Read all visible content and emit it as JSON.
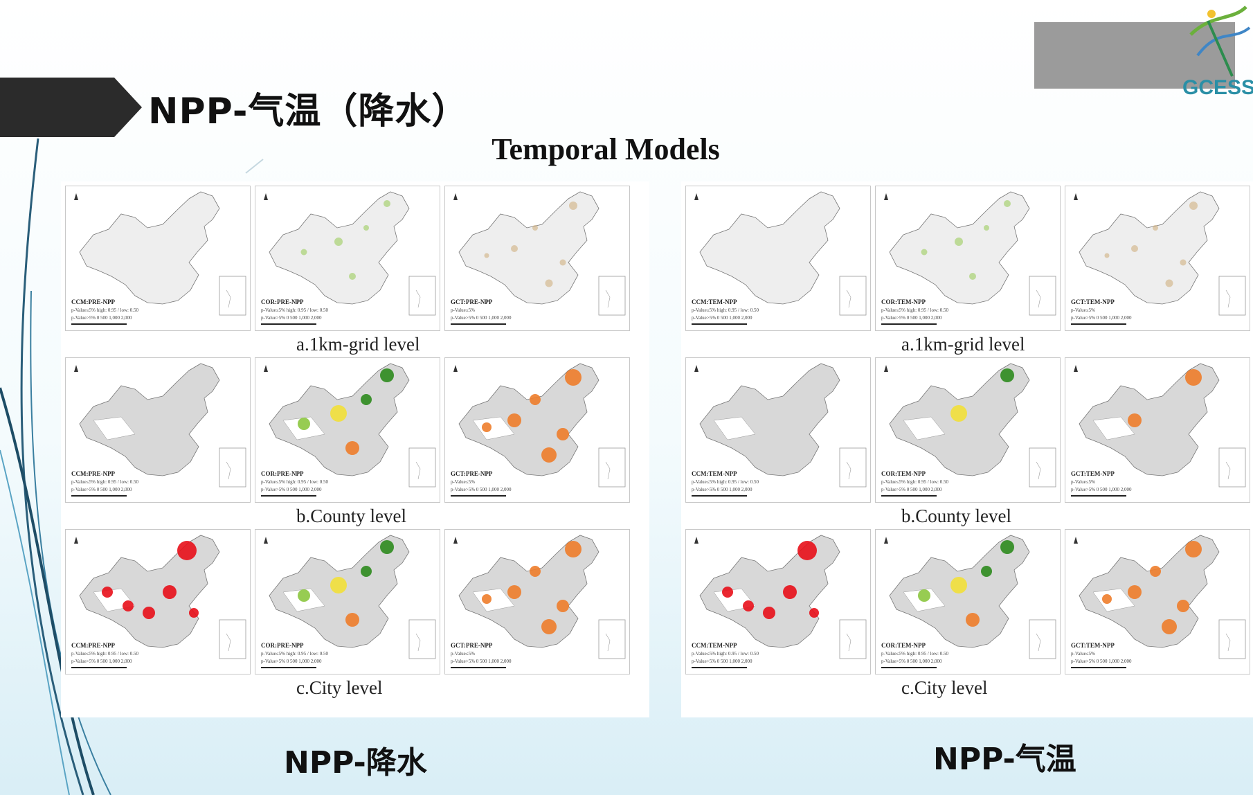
{
  "slide": {
    "title": "NPP-气温（降水）",
    "subtitle": "Temporal Models",
    "logo_text": "GCESS"
  },
  "panels": {
    "left": {
      "caption": "NPP-降水",
      "rows": [
        {
          "label": "a.1km-grid level",
          "maps": [
            {
              "model": "CCM:PRE-NPP",
              "legend": "high: 0.95 / low: 0.50"
            },
            {
              "model": "COR:PRE-NPP",
              "legend": "high: 0.95 / low: 0.50"
            },
            {
              "model": "GCT:PRE-NPP",
              "legend": ""
            }
          ]
        },
        {
          "label": "b.County level",
          "maps": [
            {
              "model": "CCM:PRE-NPP",
              "legend": "high: 0.95 / low: 0.50"
            },
            {
              "model": "COR:PRE-NPP",
              "legend": "high: 0.95 / low: 0.50"
            },
            {
              "model": "GCT:PRE-NPP",
              "legend": ""
            }
          ]
        },
        {
          "label": "c.City level",
          "maps": [
            {
              "model": "CCM:PRE-NPP",
              "legend": "high: 0.95 / low: 0.50"
            },
            {
              "model": "COR:PRE-NPP",
              "legend": "high: 0.95 / low: 0.50"
            },
            {
              "model": "GCT:PRE-NPP",
              "legend": ""
            }
          ]
        }
      ]
    },
    "right": {
      "caption": "NPP-气温",
      "rows": [
        {
          "label": "a.1km-grid level",
          "maps": [
            {
              "model": "CCM:TEM-NPP",
              "legend": "high: 0.95 / low: 0.50"
            },
            {
              "model": "COR:TEM-NPP",
              "legend": "high: 0.95 / low: 0.50"
            },
            {
              "model": "GCT:TEM-NPP",
              "legend": ""
            }
          ]
        },
        {
          "label": "b.County level",
          "maps": [
            {
              "model": "CCM:TEM-NPP",
              "legend": "high: 0.95 / low: 0.50"
            },
            {
              "model": "COR:TEM-NPP",
              "legend": "high: 0.95 / low: 0.50"
            },
            {
              "model": "GCT:TEM-NPP",
              "legend": ""
            }
          ]
        },
        {
          "label": "c.City level",
          "maps": [
            {
              "model": "CCM:TEM-NPP",
              "legend": "high: 0.95 / low: 0.50"
            },
            {
              "model": "COR:TEM-NPP",
              "legend": "high: 0.95 / low: 0.50"
            },
            {
              "model": "GCT:TEM-NPP",
              "legend": ""
            }
          ]
        }
      ]
    }
  },
  "legend_common": {
    "sig": "p-Value≤5%",
    "nonsig": "p-Value>5%",
    "scale": "0   500  1,000      2,000"
  },
  "colors": {
    "arrow": "#2b2b2b",
    "green_dark": "#2e8b1e",
    "green_light": "#8cc63f",
    "yellow": "#f2e03a",
    "orange": "#ee7d2b",
    "red": "#e8101a",
    "land": "#d8d8d8"
  }
}
